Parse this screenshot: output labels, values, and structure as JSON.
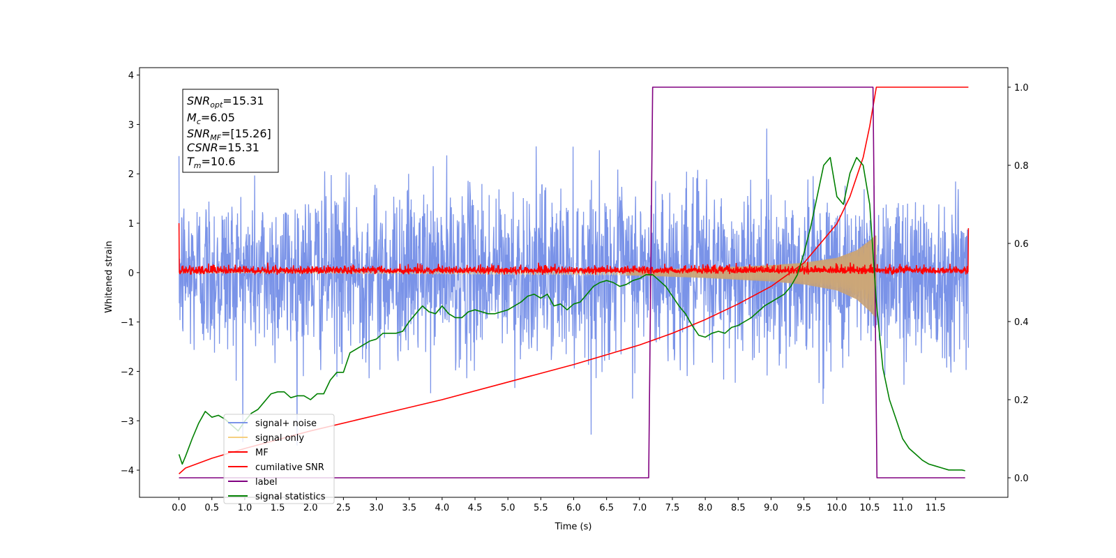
{
  "chart_data": {
    "type": "line",
    "xlabel": "Time (s)",
    "ylabel": "Whitened strain",
    "xlim": [
      -0.6,
      12.6
    ],
    "ylim": [
      -4.55,
      4.15
    ],
    "y2lim": [
      -0.05,
      1.05
    ],
    "x_ticks": [
      "0.0",
      "0.5",
      "1.0",
      "1.5",
      "2.0",
      "2.5",
      "3.0",
      "3.5",
      "4.0",
      "4.5",
      "5.0",
      "5.5",
      "6.0",
      "6.5",
      "7.0",
      "7.5",
      "8.0",
      "8.5",
      "9.0",
      "9.5",
      "10.0",
      "10.5",
      "11.0",
      "11.5"
    ],
    "y_ticks": [
      "4",
      "3",
      "2",
      "1",
      "0",
      "−1",
      "−2",
      "−3",
      "−4"
    ],
    "y2_ticks": [
      "1.0",
      "0.8",
      "0.6",
      "0.4",
      "0.2",
      "0.0"
    ],
    "info_box": {
      "snr_opt_label": "SNR",
      "snr_opt_sub": "opt",
      "snr_opt_value": "=15.31",
      "mc_label": "M",
      "mc_sub": "c",
      "mc_value": "=6.05",
      "snr_mf_label": "SNR",
      "snr_mf_sub": "MF",
      "snr_mf_value": "=[15.26]",
      "csnr_label": "CSNR",
      "csnr_value": "=15.31",
      "tm_label": "T",
      "tm_sub": "m",
      "tm_value": "=10.6"
    },
    "series": [
      {
        "name": "signal+ noise",
        "color": "#7a93e8",
        "axis": "left",
        "noise_std": 0.85,
        "t_start": 0.0,
        "t_end": 12.0
      },
      {
        "name": "signal only",
        "color": "#f5cf80",
        "axis": "left",
        "t_start": 0.0,
        "t_end": 10.6,
        "envelope": [
          [
            7.0,
            0.05
          ],
          [
            8.0,
            0.09
          ],
          [
            9.0,
            0.15
          ],
          [
            9.5,
            0.2
          ],
          [
            10.0,
            0.3
          ],
          [
            10.3,
            0.45
          ],
          [
            10.5,
            0.65
          ],
          [
            10.58,
            0.75
          ]
        ]
      },
      {
        "name": "MF",
        "color": "#ff0000",
        "axis": "left",
        "t_start": 0.0,
        "t_end": 12.0,
        "start_value": 1.0,
        "end_value": 0.9
      },
      {
        "name": "cumilative SNR",
        "color": "#ff0000",
        "axis": "right",
        "x": [
          0.0,
          0.1,
          0.5,
          1.0,
          2.0,
          3.0,
          4.0,
          5.0,
          6.0,
          6.5,
          7.0,
          7.5,
          8.0,
          8.5,
          9.0,
          9.5,
          10.0,
          10.2,
          10.4,
          10.5,
          10.6,
          11.0,
          12.0
        ],
        "y": [
          0.01,
          0.025,
          0.05,
          0.075,
          0.12,
          0.16,
          0.2,
          0.245,
          0.29,
          0.315,
          0.34,
          0.37,
          0.405,
          0.445,
          0.49,
          0.55,
          0.65,
          0.72,
          0.82,
          0.9,
          1.0,
          1.0,
          1.0
        ]
      },
      {
        "name": "label",
        "color": "#800080",
        "axis": "right",
        "x": [
          0.0,
          7.14,
          7.2,
          10.55,
          10.61,
          11.95
        ],
        "y": [
          0.0,
          0.0,
          1.0,
          1.0,
          0.0,
          0.0
        ]
      },
      {
        "name": "signal statistics",
        "color": "#008000",
        "axis": "right",
        "x": [
          0.0,
          0.05,
          0.1,
          0.2,
          0.3,
          0.4,
          0.5,
          0.6,
          0.7,
          0.8,
          0.9,
          1.0,
          1.1,
          1.2,
          1.3,
          1.4,
          1.5,
          1.6,
          1.7,
          1.8,
          1.9,
          2.0,
          2.1,
          2.2,
          2.3,
          2.4,
          2.5,
          2.6,
          2.7,
          2.8,
          2.9,
          3.0,
          3.1,
          3.2,
          3.3,
          3.4,
          3.5,
          3.6,
          3.7,
          3.8,
          3.9,
          4.0,
          4.1,
          4.2,
          4.3,
          4.4,
          4.5,
          4.6,
          4.7,
          4.8,
          4.9,
          5.0,
          5.1,
          5.2,
          5.3,
          5.4,
          5.5,
          5.6,
          5.7,
          5.8,
          5.9,
          6.0,
          6.1,
          6.2,
          6.3,
          6.4,
          6.5,
          6.6,
          6.7,
          6.8,
          6.9,
          7.0,
          7.1,
          7.2,
          7.3,
          7.4,
          7.5,
          7.6,
          7.7,
          7.8,
          7.9,
          8.0,
          8.1,
          8.2,
          8.3,
          8.4,
          8.5,
          8.6,
          8.7,
          8.8,
          8.9,
          9.0,
          9.1,
          9.2,
          9.3,
          9.4,
          9.5,
          9.6,
          9.7,
          9.8,
          9.9,
          10.0,
          10.1,
          10.2,
          10.3,
          10.4,
          10.5,
          10.6,
          10.7,
          10.8,
          10.9,
          11.0,
          11.1,
          11.2,
          11.3,
          11.4,
          11.5,
          11.6,
          11.7,
          11.8,
          11.9,
          11.95
        ],
        "y": [
          0.06,
          0.035,
          0.055,
          0.1,
          0.14,
          0.17,
          0.155,
          0.16,
          0.15,
          0.135,
          0.12,
          0.145,
          0.165,
          0.175,
          0.195,
          0.215,
          0.22,
          0.22,
          0.205,
          0.21,
          0.21,
          0.2,
          0.215,
          0.215,
          0.25,
          0.27,
          0.27,
          0.32,
          0.33,
          0.34,
          0.35,
          0.355,
          0.37,
          0.37,
          0.37,
          0.375,
          0.4,
          0.42,
          0.44,
          0.425,
          0.42,
          0.44,
          0.42,
          0.41,
          0.41,
          0.425,
          0.43,
          0.425,
          0.42,
          0.42,
          0.425,
          0.43,
          0.44,
          0.45,
          0.465,
          0.47,
          0.46,
          0.47,
          0.44,
          0.445,
          0.43,
          0.445,
          0.45,
          0.47,
          0.49,
          0.5,
          0.505,
          0.5,
          0.49,
          0.495,
          0.505,
          0.51,
          0.52,
          0.52,
          0.505,
          0.49,
          0.465,
          0.44,
          0.42,
          0.39,
          0.365,
          0.36,
          0.37,
          0.375,
          0.37,
          0.385,
          0.39,
          0.4,
          0.41,
          0.425,
          0.44,
          0.45,
          0.46,
          0.47,
          0.49,
          0.52,
          0.575,
          0.64,
          0.72,
          0.8,
          0.82,
          0.72,
          0.7,
          0.78,
          0.82,
          0.8,
          0.7,
          0.45,
          0.28,
          0.2,
          0.15,
          0.1,
          0.075,
          0.06,
          0.045,
          0.035,
          0.03,
          0.025,
          0.02,
          0.02,
          0.02,
          0.018
        ]
      }
    ]
  }
}
